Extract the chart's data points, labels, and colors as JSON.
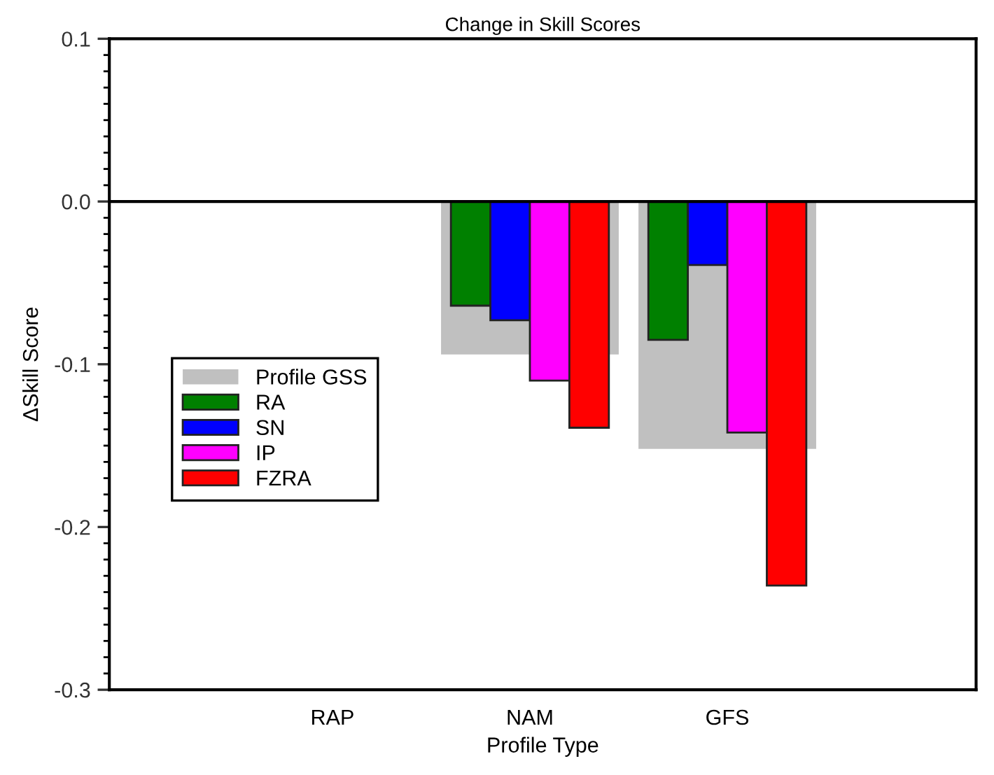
{
  "chart_data": {
    "type": "bar",
    "title": "Change in Skill Scores",
    "xlabel": "Profile Type",
    "ylabel": "ΔSkill Score",
    "categories": [
      "RAP",
      "NAM",
      "GFS"
    ],
    "series": [
      {
        "name": "Profile GSS",
        "color": "#c0c0c0",
        "values": [
          null,
          -0.094,
          -0.152
        ]
      },
      {
        "name": "RA",
        "color": "#008000",
        "values": [
          null,
          -0.064,
          -0.085
        ]
      },
      {
        "name": "SN",
        "color": "#0000ff",
        "values": [
          null,
          -0.073,
          -0.039
        ]
      },
      {
        "name": "IP",
        "color": "#ff00ff",
        "values": [
          null,
          -0.11,
          -0.142
        ]
      },
      {
        "name": "FZRA",
        "color": "#ff0000",
        "values": [
          null,
          -0.139,
          -0.236
        ]
      }
    ],
    "ylim": [
      -0.3,
      0.1
    ],
    "yticks": [
      {
        "value": -0.3,
        "label": "-0.3"
      },
      {
        "value": -0.2,
        "label": "-0.2"
      },
      {
        "value": -0.1,
        "label": "-0.1"
      },
      {
        "value": 0,
        "label": "0.0"
      },
      {
        "value": 0.1,
        "label": "0.1"
      }
    ],
    "ref_lines": [
      {
        "axis": "y",
        "value": 0,
        "color": "#000000"
      }
    ],
    "legend": "left",
    "grid": false
  }
}
